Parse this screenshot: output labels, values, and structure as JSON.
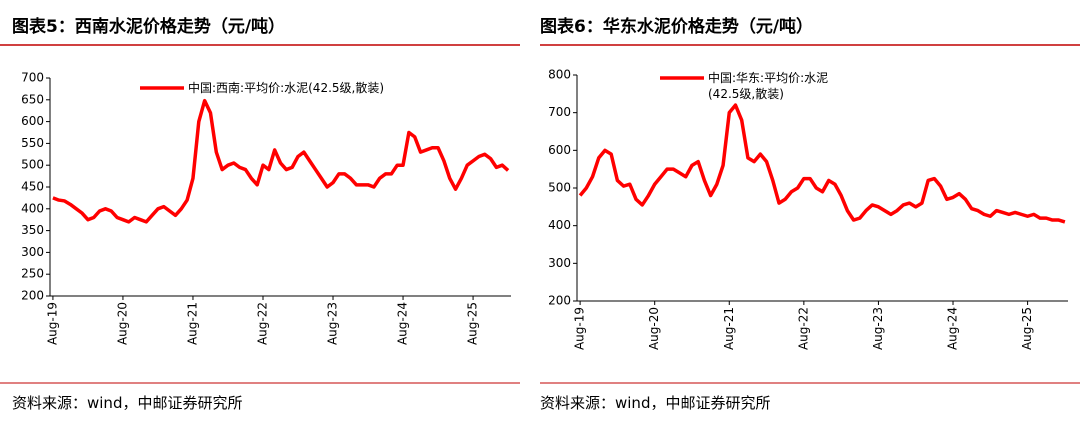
{
  "chart_data": [
    {
      "type": "line",
      "title": "图表5：西南水泥价格走势（元/吨）",
      "source": "资料来源：wind，中邮证券研究所",
      "categories": [
        "Aug-19",
        null,
        null,
        null,
        null,
        null,
        null,
        null,
        null,
        null,
        null,
        null,
        "Aug-20",
        null,
        null,
        null,
        null,
        null,
        null,
        null,
        null,
        null,
        null,
        null,
        "Aug-21",
        null,
        null,
        null,
        null,
        null,
        null,
        null,
        null,
        null,
        null,
        null,
        "Aug-22",
        null,
        null,
        null,
        null,
        null,
        null,
        null,
        null,
        null,
        null,
        null,
        "Aug-23",
        null,
        null,
        null,
        null,
        null,
        null,
        null,
        null,
        null,
        null,
        null,
        "Aug-24",
        null,
        null,
        null,
        null,
        null,
        null,
        null,
        null,
        null,
        null,
        null,
        "Aug-25",
        null,
        null,
        null,
        null,
        null,
        null
      ],
      "series": [
        {
          "name": "中国:西南:平均价:水泥(42.5级,散装)",
          "color": "#ff0000",
          "values": [
            425,
            420,
            418,
            410,
            400,
            390,
            375,
            380,
            395,
            400,
            395,
            380,
            375,
            370,
            380,
            375,
            370,
            385,
            400,
            405,
            395,
            385,
            400,
            420,
            470,
            600,
            648,
            620,
            530,
            490,
            500,
            505,
            495,
            490,
            470,
            455,
            500,
            490,
            535,
            505,
            490,
            495,
            520,
            530,
            510,
            490,
            470,
            450,
            460,
            480,
            480,
            470,
            455,
            455,
            455,
            450,
            470,
            480,
            480,
            500,
            500,
            575,
            565,
            530,
            535,
            540,
            540,
            510,
            470,
            445,
            470,
            500,
            510,
            520,
            525,
            515,
            495,
            500,
            488
          ]
        }
      ],
      "ylim": [
        200,
        700
      ],
      "yticks": [
        200,
        250,
        300,
        350,
        400,
        450,
        500,
        550,
        600,
        650,
        700
      ]
    },
    {
      "type": "line",
      "title": "图表6：华东水泥价格走势（元/吨）",
      "source": "资料来源：wind，中邮证券研究所",
      "categories": [
        "Aug-19",
        null,
        null,
        null,
        null,
        null,
        null,
        null,
        null,
        null,
        null,
        null,
        "Aug-20",
        null,
        null,
        null,
        null,
        null,
        null,
        null,
        null,
        null,
        null,
        null,
        "Aug-21",
        null,
        null,
        null,
        null,
        null,
        null,
        null,
        null,
        null,
        null,
        null,
        "Aug-22",
        null,
        null,
        null,
        null,
        null,
        null,
        null,
        null,
        null,
        null,
        null,
        "Aug-23",
        null,
        null,
        null,
        null,
        null,
        null,
        null,
        null,
        null,
        null,
        null,
        "Aug-24",
        null,
        null,
        null,
        null,
        null,
        null,
        null,
        null,
        null,
        null,
        null,
        "Aug-25",
        null,
        null,
        null,
        null,
        null,
        null
      ],
      "series": [
        {
          "name": "中国:华东:平均价:水泥(42.5级,散装)",
          "color": "#ff0000",
          "values": [
            480,
            500,
            530,
            580,
            600,
            590,
            520,
            505,
            510,
            470,
            455,
            480,
            510,
            530,
            550,
            550,
            540,
            530,
            560,
            570,
            520,
            480,
            510,
            560,
            700,
            720,
            680,
            580,
            570,
            590,
            570,
            520,
            460,
            470,
            490,
            500,
            525,
            525,
            500,
            490,
            520,
            510,
            480,
            440,
            415,
            420,
            440,
            455,
            450,
            440,
            430,
            440,
            455,
            460,
            450,
            460,
            520,
            525,
            505,
            470,
            475,
            485,
            470,
            445,
            440,
            430,
            425,
            440,
            435,
            430,
            435,
            430,
            425,
            430,
            420,
            420,
            415,
            415,
            410
          ]
        }
      ],
      "ylim": [
        200,
        800
      ],
      "yticks": [
        200,
        300,
        400,
        500,
        600,
        700,
        800
      ]
    }
  ]
}
